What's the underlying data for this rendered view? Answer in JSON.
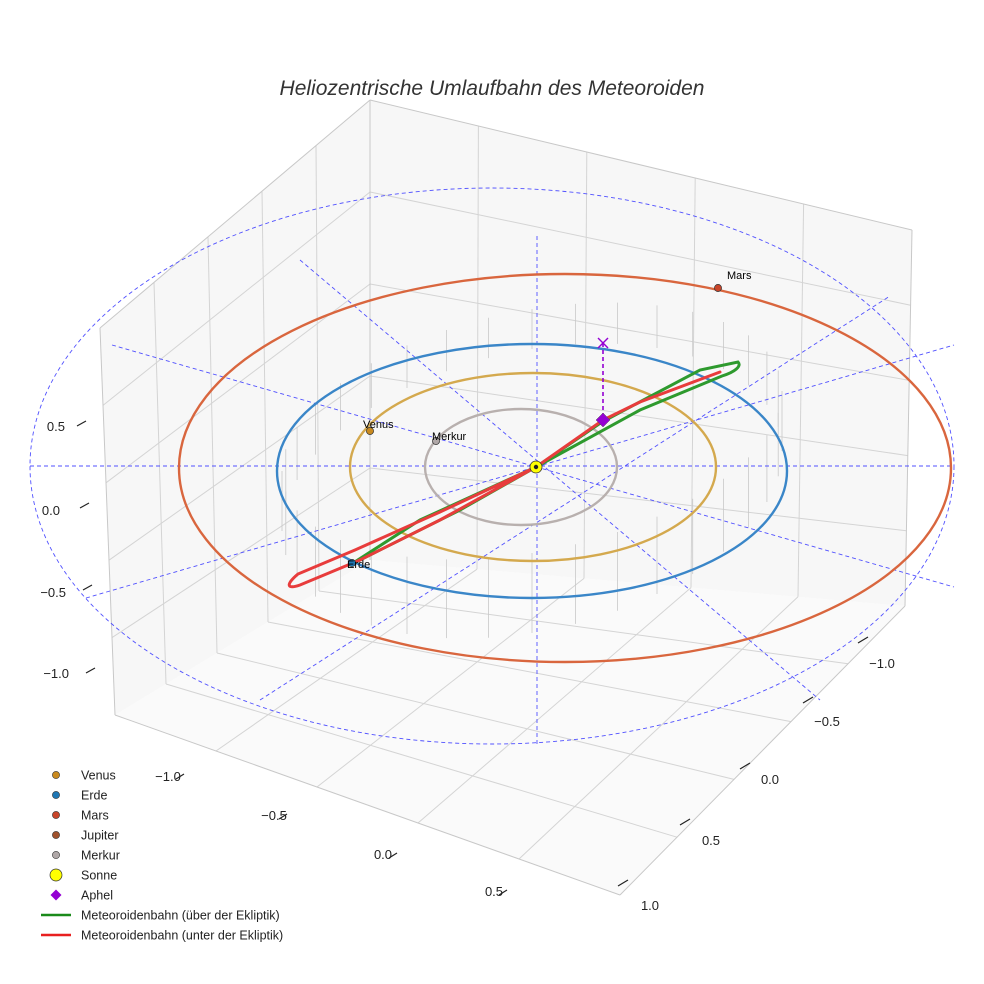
{
  "chart_data": {
    "type": "scatter3d",
    "title": "Heliozentrische Umlaufbahn des Meteoroiden",
    "axes": {
      "x": {
        "ticks": [
          "−1.0",
          "−0.5",
          "0.0",
          "0.5"
        ]
      },
      "y": {
        "ticks": [
          "−1.0",
          "−0.5",
          "0.0",
          "0.5",
          "1.0"
        ]
      },
      "z": {
        "ticks": [
          "0.5",
          "0.0",
          "−0.5",
          "−1.0"
        ]
      }
    },
    "orbits": [
      {
        "name": "Merkur",
        "radius": 0.39,
        "color": "#b8b0ae"
      },
      {
        "name": "Venus",
        "radius": 0.72,
        "color": "#d4a94e"
      },
      {
        "name": "Erde",
        "radius": 1.0,
        "color": "#3a86c8"
      },
      {
        "name": "Mars",
        "radius": 1.52,
        "color": "#d9663e"
      }
    ],
    "planets": [
      {
        "name": "Venus",
        "label": "Venus",
        "color": "#c98a1f"
      },
      {
        "name": "Merkur",
        "label": "Merkur",
        "color": "#b0a8a8"
      },
      {
        "name": "Erde",
        "label": "Erde",
        "color": "#1f77b4"
      },
      {
        "name": "Mars",
        "label": "Mars",
        "color": "#c8452a"
      }
    ],
    "meteoroid": {
      "above_color": "#2e9a2e",
      "below_color": "#e83c3c",
      "aphel_color": "#9400d3"
    },
    "legend": [
      {
        "label": "Venus",
        "marker": "circle",
        "color": "#c98a1f"
      },
      {
        "label": "Erde",
        "marker": "circle",
        "color": "#1f77b4"
      },
      {
        "label": "Mars",
        "marker": "circle",
        "color": "#c8452a"
      },
      {
        "label": "Jupiter",
        "marker": "circle",
        "color": "#a0522d"
      },
      {
        "label": "Merkur",
        "marker": "circle",
        "color": "#b0a8a8"
      },
      {
        "label": "Sonne",
        "marker": "circle-large",
        "color": "#ffff00"
      },
      {
        "label": "Aphel",
        "marker": "diamond",
        "color": "#9400d3"
      },
      {
        "label": "Meteoroidenbahn (über der Ekliptik)",
        "marker": "line",
        "color": "#1a8a1a"
      },
      {
        "label": "Meteoroidenbahn (unter der Ekliptik)",
        "marker": "line",
        "color": "#e82020"
      }
    ],
    "legend_position": "bottom-left",
    "grid": true
  }
}
